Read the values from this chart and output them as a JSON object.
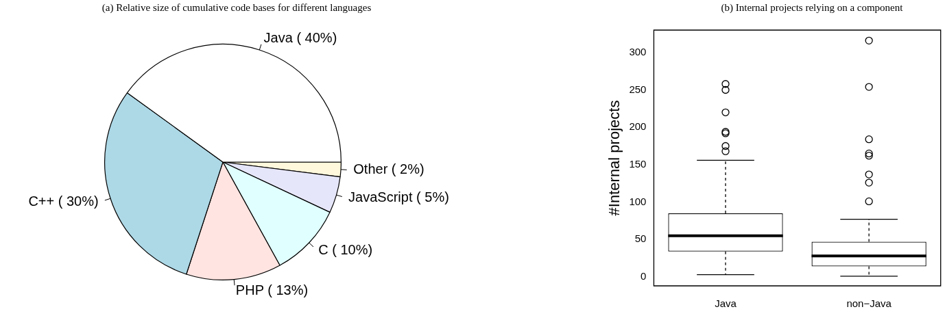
{
  "chart_data": [
    {
      "type": "pie",
      "title": "(a) Relative size of cumulative code bases for different languages",
      "categories": [
        "Java ( 40%)",
        "C++ ( 30%)",
        "PHP ( 13%)",
        "C ( 10%)",
        "JavaScript ( 5%)",
        "Other ( 2%)"
      ],
      "values": [
        40,
        30,
        13,
        10,
        5,
        2
      ],
      "colors": [
        "#ffffff",
        "#add8e6",
        "#ffe4e1",
        "#e0ffff",
        "#e6e6fa",
        "#fff8dc"
      ]
    },
    {
      "type": "box",
      "title": "(b) Internal projects relying on a component",
      "ylabel": "#Internal projects",
      "categories": [
        "Java",
        "non−Java"
      ],
      "ylim": [
        -12,
        330
      ],
      "yticks": [
        0,
        50,
        100,
        150,
        200,
        250,
        300
      ],
      "boxes": [
        {
          "low": 3,
          "q1": 34,
          "median": 55,
          "q3": 85,
          "high": 156,
          "outliers": [
            258,
            250,
            220,
            194,
            192,
            175,
            168
          ]
        },
        {
          "low": 1,
          "q1": 14,
          "median": 28,
          "q3": 47,
          "high": 77,
          "outliers": [
            316,
            254,
            184,
            165,
            162,
            137,
            126,
            101
          ]
        }
      ]
    }
  ]
}
